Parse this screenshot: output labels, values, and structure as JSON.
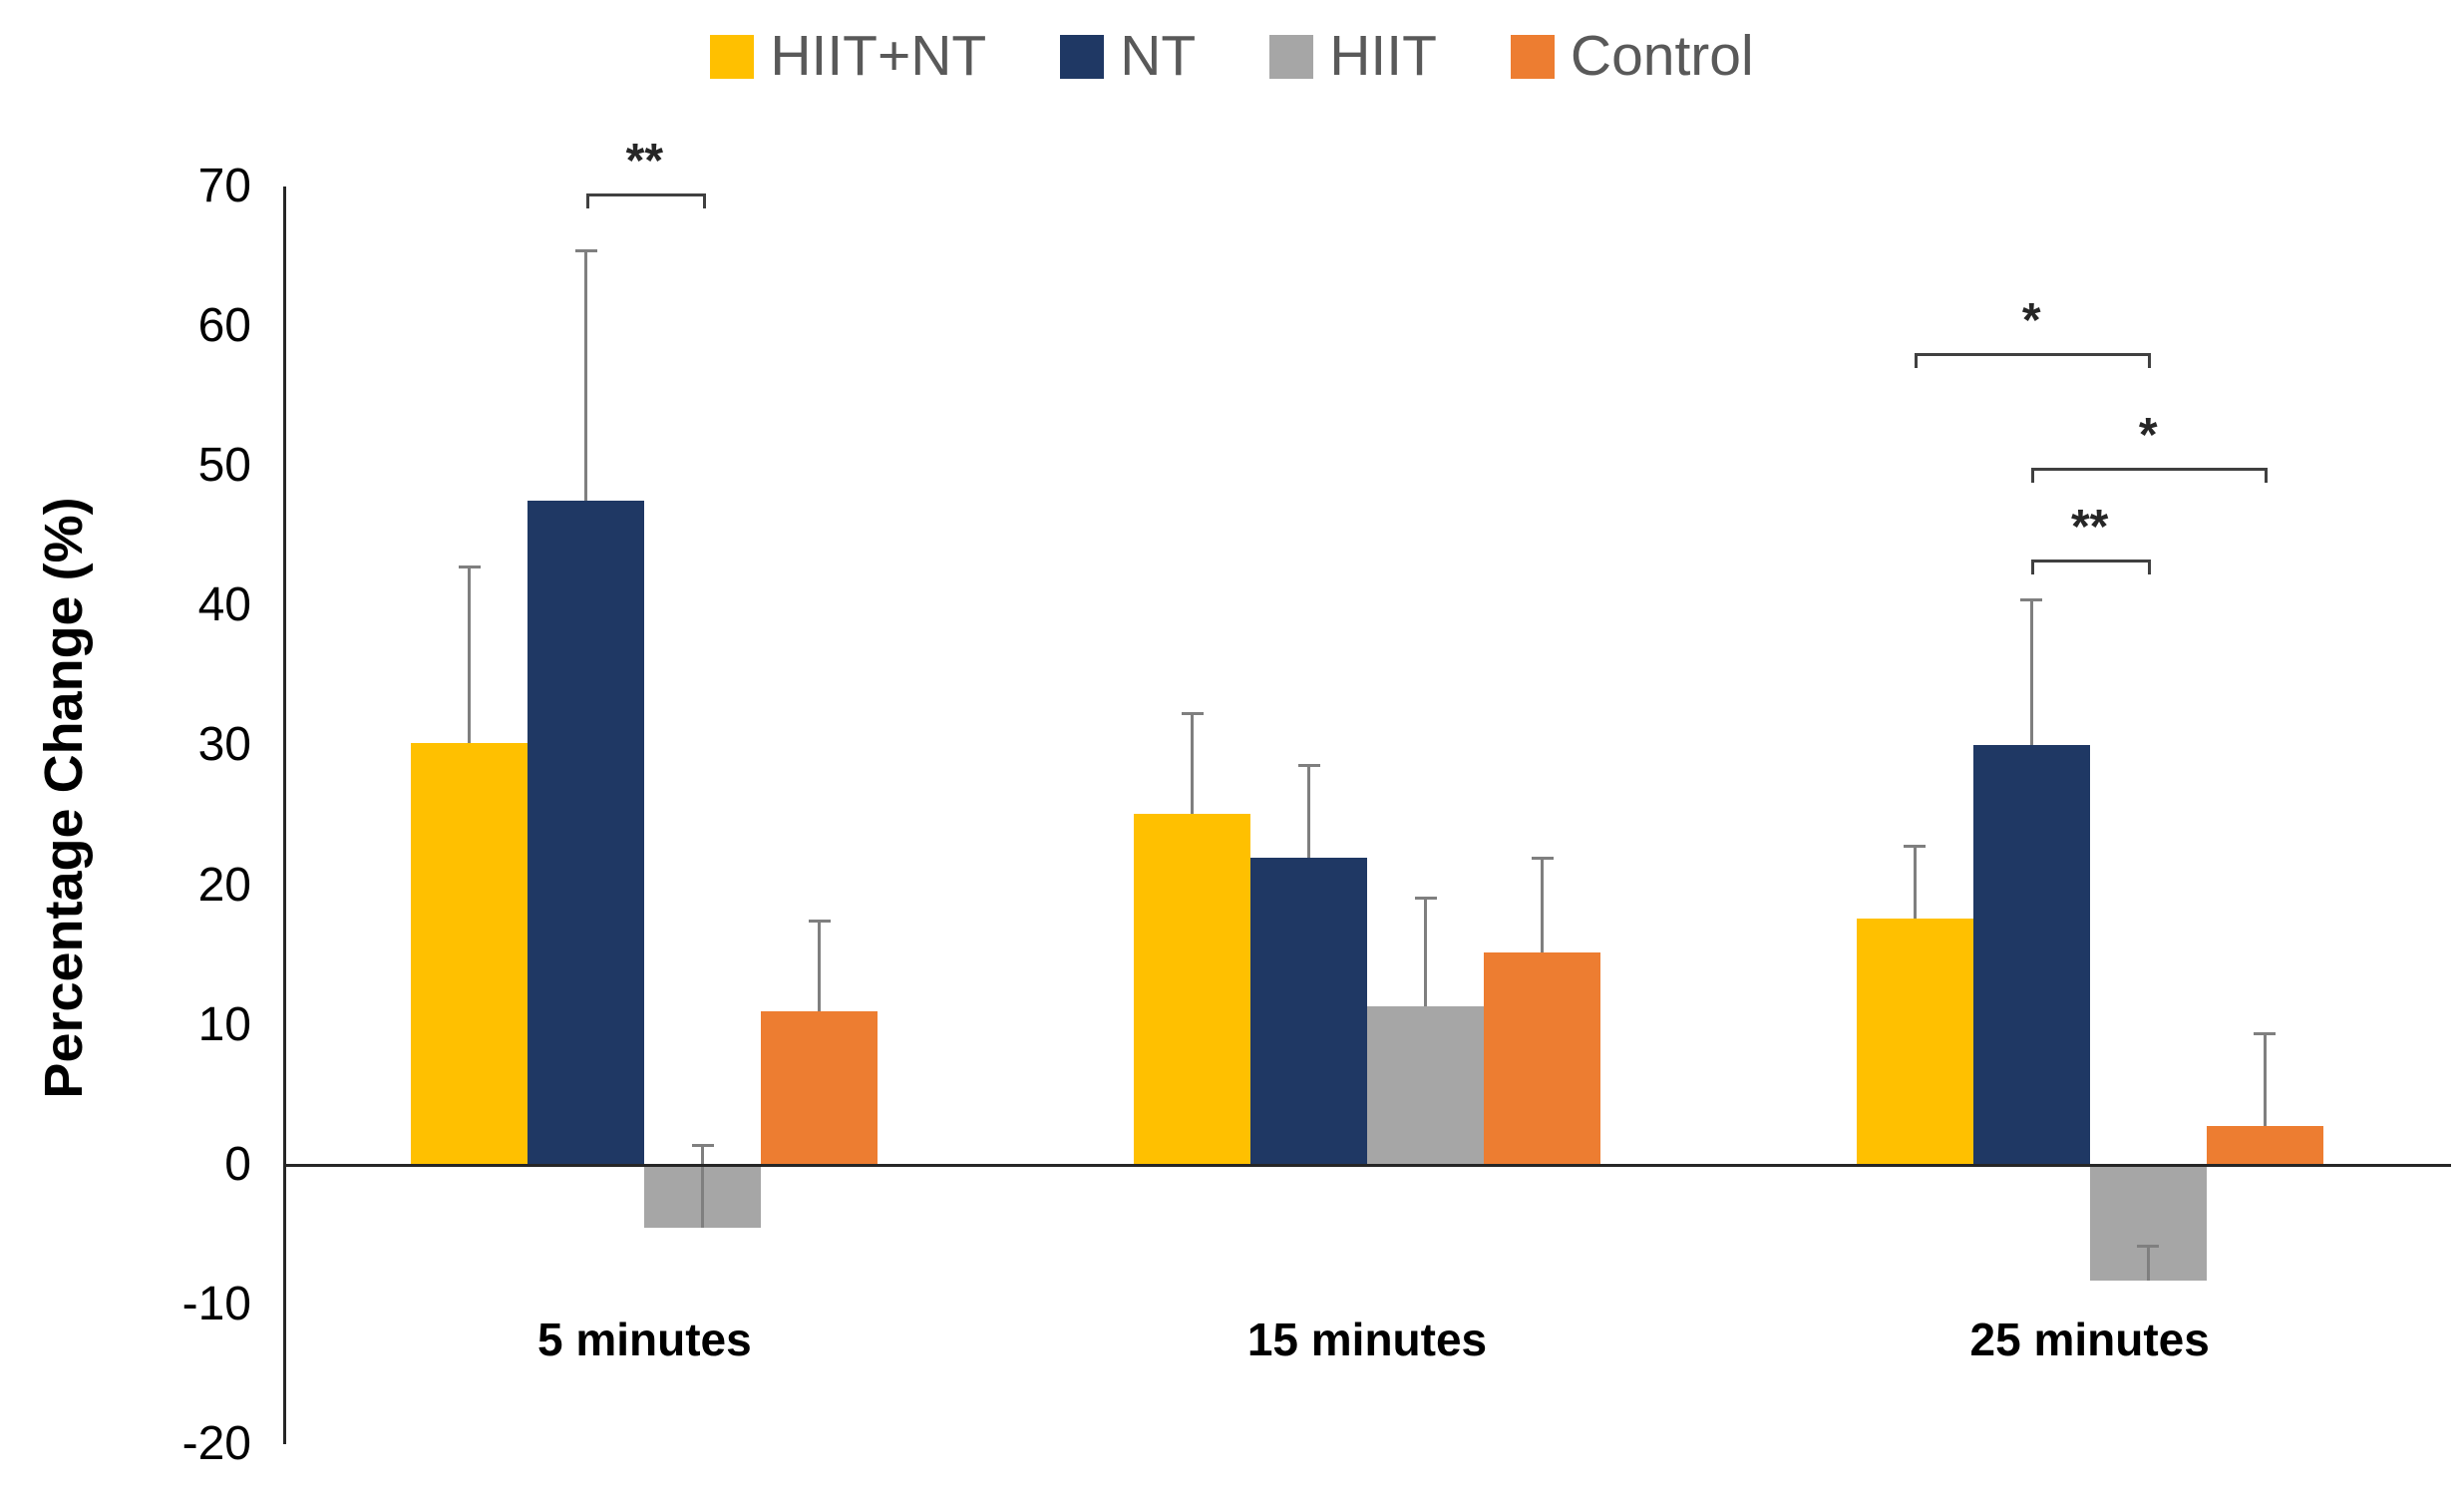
{
  "chart_data": {
    "type": "bar",
    "title": "",
    "ylabel": "Percentage Change (%)",
    "xlabel": "",
    "categories": [
      "5 minutes",
      "15 minutes",
      "25 minutes"
    ],
    "series": [
      {
        "name": "HIIT+NT",
        "color": "#FFC000",
        "values": [
          30.2,
          25.1,
          17.6
        ],
        "errors_plus": [
          12.6,
          7.2,
          5.2
        ]
      },
      {
        "name": "NT",
        "color": "#1F3864",
        "values": [
          47.5,
          22.0,
          30.0
        ],
        "errors_plus": [
          17.9,
          6.6,
          10.4
        ]
      },
      {
        "name": "HIIT",
        "color": "#A6A6A6",
        "values": [
          -4.5,
          11.3,
          -8.3
        ],
        "errors_plus": [
          5.9,
          7.8,
          2.5
        ]
      },
      {
        "name": "Control",
        "color": "#ED7D31",
        "values": [
          11.0,
          15.2,
          2.8
        ],
        "errors_plus": [
          6.4,
          6.7,
          6.6
        ]
      }
    ],
    "ylim": [
      -20,
      70
    ],
    "ytick_labels": [
      "70",
      "60",
      "50",
      "40",
      "30",
      "20",
      "10",
      "0",
      "-10",
      "-20"
    ],
    "grid": false,
    "legend_position": "top",
    "error_bars": "plus-direction with caps",
    "significance": [
      {
        "category": 0,
        "from": "NT",
        "to": "HIIT",
        "label": "**",
        "line_value": 69.5
      },
      {
        "category": 2,
        "from": "HIIT+NT",
        "to": "HIIT",
        "label": "*",
        "line_value": 58.1
      },
      {
        "category": 2,
        "from": "NT",
        "to": "Control",
        "label": "*",
        "line_value": 49.9
      },
      {
        "category": 2,
        "from": "NT",
        "to": "HIIT",
        "label": "**",
        "line_value": 43.3
      }
    ]
  }
}
